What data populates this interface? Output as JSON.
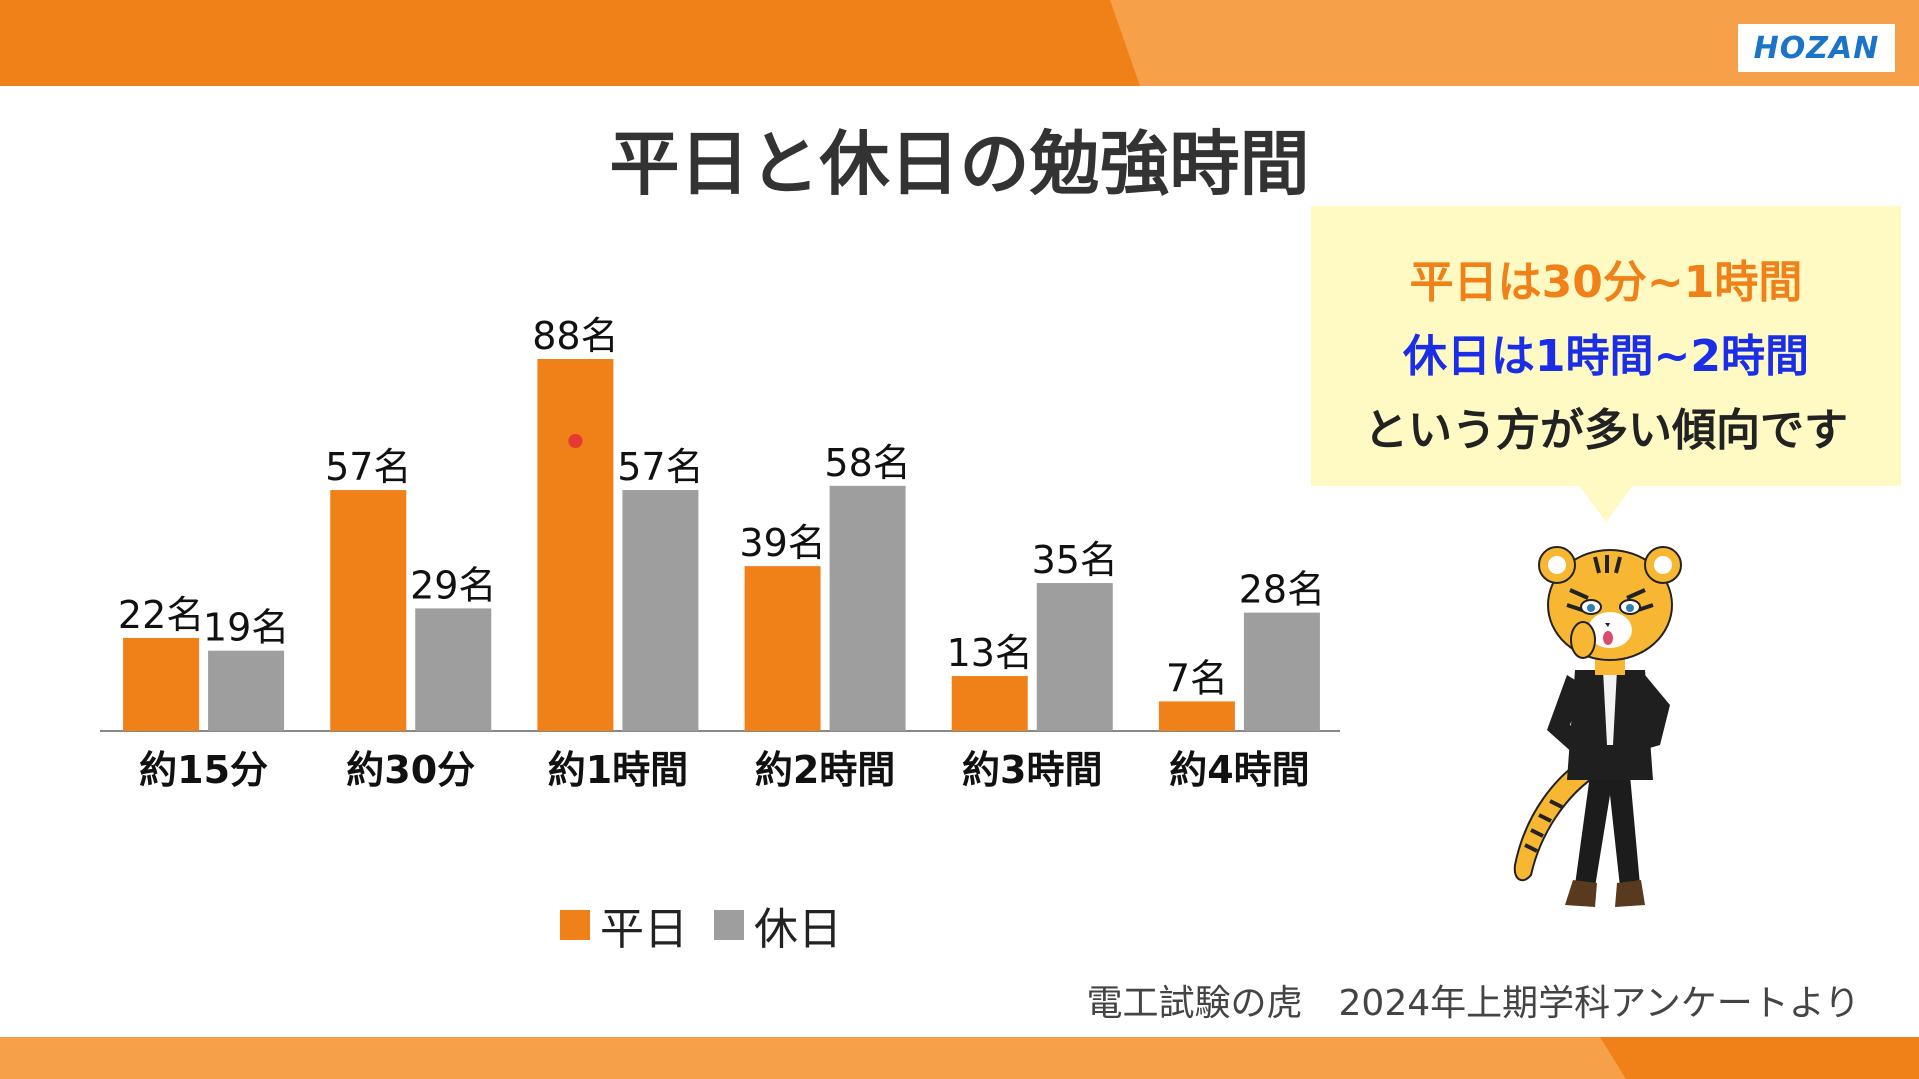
{
  "header": {
    "logo_text": "HOZAN"
  },
  "title": "平日と休日の勉強時間",
  "callout": {
    "line1": "平日は30分~1時間",
    "line2": "休日は1時間~2時間",
    "line3": "という方が多い傾向です"
  },
  "source": "電工試験の虎　2024年上期学科アンケートより",
  "colors": {
    "weekday": "#f08018",
    "holiday": "#9e9e9e",
    "brand_blue": "#1b74c8"
  },
  "chart_data": {
    "type": "bar",
    "title": "平日と休日の勉強時間",
    "categories": [
      "約15分",
      "約30分",
      "約1時間",
      "約2時間",
      "約3時間",
      "約4時間"
    ],
    "series": [
      {
        "name": "平日",
        "values": [
          22,
          57,
          88,
          39,
          13,
          7
        ],
        "labels": [
          "22名",
          "57名",
          "88名",
          "39名",
          "13名",
          "7名"
        ]
      },
      {
        "name": "休日",
        "values": [
          19,
          29,
          57,
          58,
          35,
          28
        ],
        "labels": [
          "19名",
          "29名",
          "57名",
          "58名",
          "35名",
          "28名"
        ]
      }
    ],
    "unit": "名",
    "ylim": [
      0,
      88
    ],
    "grid": false,
    "legend": "bottom"
  }
}
